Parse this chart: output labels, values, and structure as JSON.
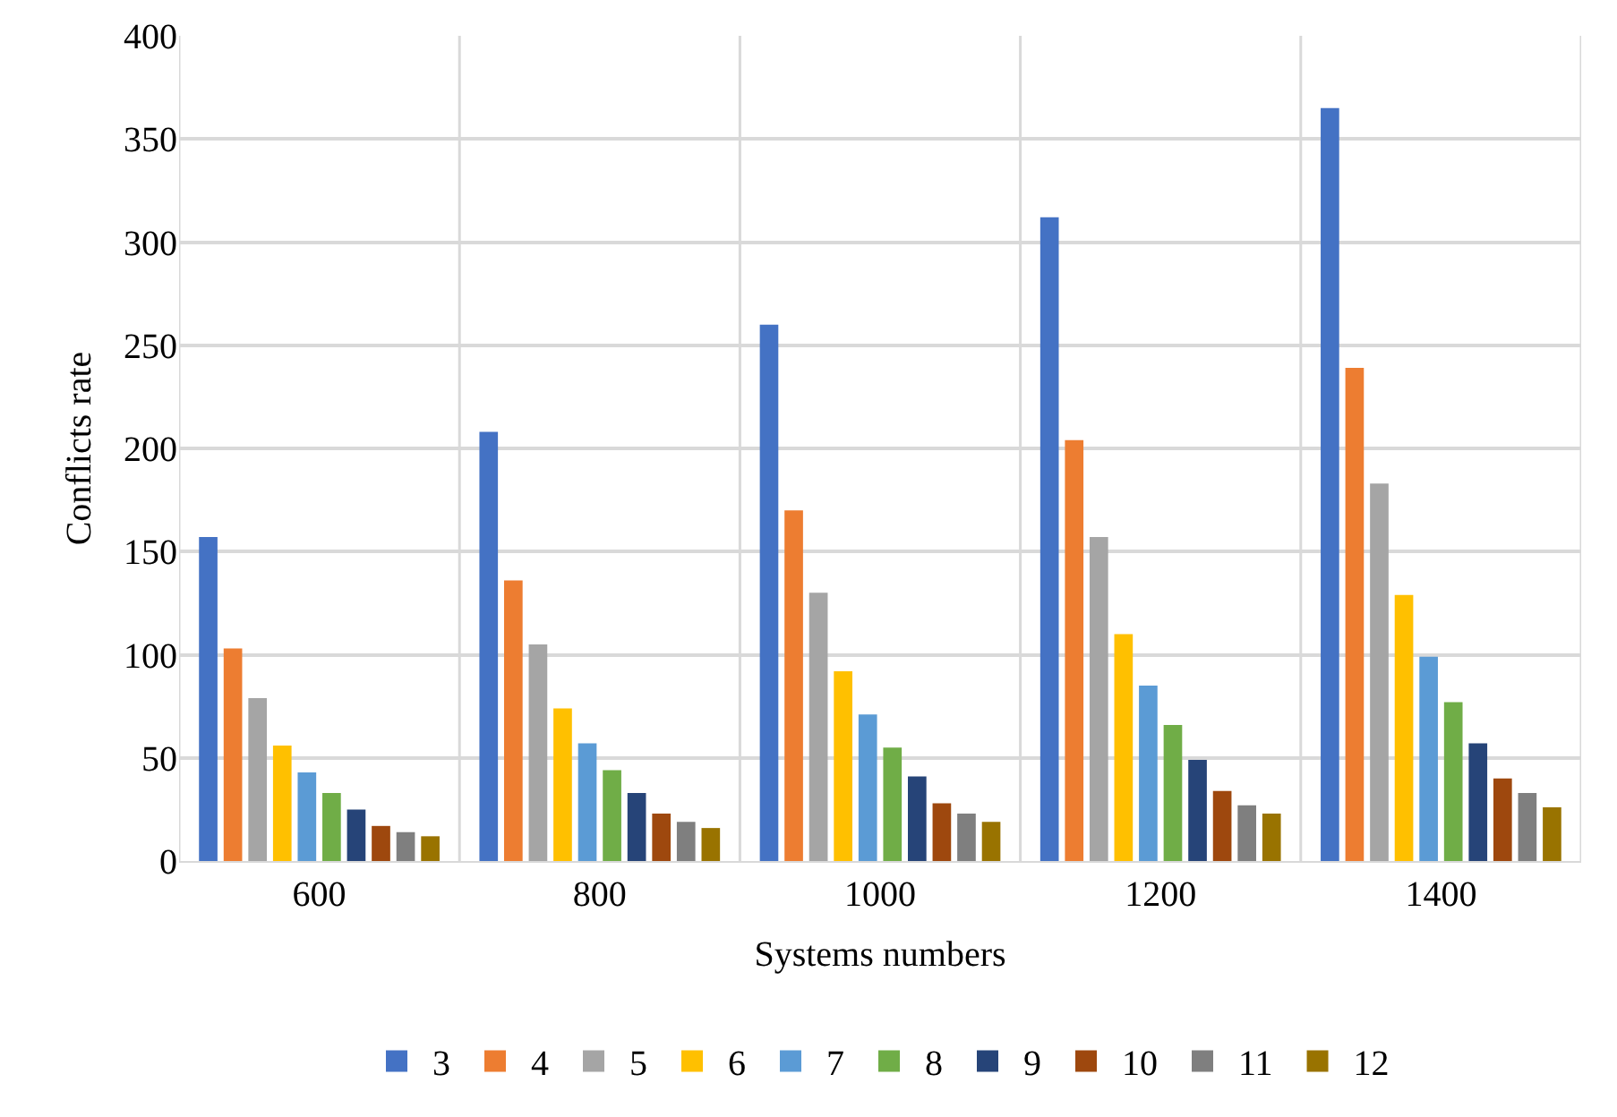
{
  "chart_data": {
    "type": "bar",
    "xlabel": "Systems numbers",
    "ylabel": "Conflicts rate",
    "categories": [
      "600",
      "800",
      "1000",
      "1200",
      "1400"
    ],
    "series": [
      {
        "name": "3",
        "color": "#4472c4",
        "values": [
          157,
          208,
          260,
          312,
          365
        ]
      },
      {
        "name": "4",
        "color": "#ed7d31",
        "values": [
          103,
          136,
          170,
          204,
          239
        ]
      },
      {
        "name": "5",
        "color": "#a5a5a5",
        "values": [
          79,
          105,
          130,
          157,
          183
        ]
      },
      {
        "name": "6",
        "color": "#ffc000",
        "values": [
          56,
          74,
          92,
          110,
          129
        ]
      },
      {
        "name": "7",
        "color": "#5b9bd5",
        "values": [
          43,
          57,
          71,
          85,
          99
        ]
      },
      {
        "name": "8",
        "color": "#70ad47",
        "values": [
          33,
          44,
          55,
          66,
          77
        ]
      },
      {
        "name": "9",
        "color": "#264478",
        "values": [
          25,
          33,
          41,
          49,
          57
        ]
      },
      {
        "name": "10",
        "color": "#9e480e",
        "values": [
          17,
          23,
          28,
          34,
          40
        ]
      },
      {
        "name": "11",
        "color": "#7f7f7f",
        "values": [
          14,
          19,
          23,
          27,
          33
        ]
      },
      {
        "name": "12",
        "color": "#997300",
        "values": [
          12,
          16,
          19,
          23,
          26
        ]
      }
    ],
    "ylim": [
      0,
      400
    ],
    "yticks": [
      0,
      50,
      100,
      150,
      200,
      250,
      300,
      350,
      400
    ],
    "grid": true,
    "legend": "bottom"
  }
}
